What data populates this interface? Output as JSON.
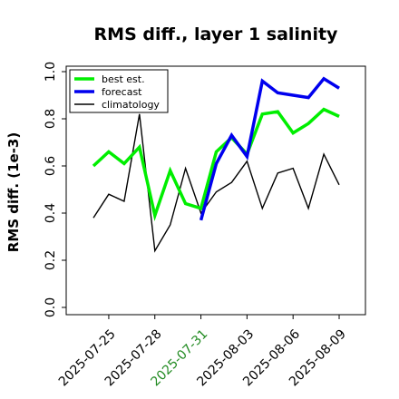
{
  "chart_data": {
    "type": "line",
    "title": "RMS diff., layer 1 salinity",
    "xlabel": "",
    "ylabel": "RMS diff. (1e-3)",
    "ylim": [
      0.0,
      1.05
    ],
    "yticks": [
      0.0,
      0.2,
      0.4,
      0.6,
      0.8,
      1.0
    ],
    "ytick_labels": [
      "0.0",
      "0.2",
      "0.4",
      "0.6",
      "0.8",
      "1.0"
    ],
    "xlim": [
      "2025-07-23",
      "2025-08-09"
    ],
    "xticks": [
      "2025-07-25",
      "2025-07-28",
      "2025-07-31",
      "2025-08-03",
      "2025-08-06",
      "2025-08-09"
    ],
    "xtick_colors": [
      "#000000",
      "#000000",
      "#228B22",
      "#000000",
      "#000000",
      "#000000"
    ],
    "grid": false,
    "legend_position": "upper-left",
    "series": [
      {
        "name": "best est.",
        "color": "#00ee00",
        "x": [
          "2025-07-24",
          "2025-07-25",
          "2025-07-26",
          "2025-07-27",
          "2025-07-28",
          "2025-07-29",
          "2025-07-30",
          "2025-07-31",
          "2025-08-01",
          "2025-08-02",
          "2025-08-03",
          "2025-08-04",
          "2025-08-05",
          "2025-08-06",
          "2025-08-07",
          "2025-08-08",
          "2025-08-09"
        ],
        "values": [
          0.6,
          0.66,
          0.61,
          0.68,
          0.39,
          0.58,
          0.44,
          0.42,
          0.66,
          0.72,
          0.65,
          0.82,
          0.83,
          0.74,
          0.78,
          0.84,
          0.81
        ]
      },
      {
        "name": "forecast",
        "color": "#0000ee",
        "x": [
          "2025-07-31",
          "2025-08-01",
          "2025-08-02",
          "2025-08-03",
          "2025-08-04",
          "2025-08-05",
          "2025-08-06",
          "2025-08-07",
          "2025-08-08",
          "2025-08-09"
        ],
        "values": [
          0.37,
          0.61,
          0.73,
          0.64,
          0.96,
          0.91,
          0.9,
          0.89,
          0.97,
          0.93
        ]
      },
      {
        "name": "climatology",
        "color": "#000000",
        "x": [
          "2025-07-24",
          "2025-07-25",
          "2025-07-26",
          "2025-07-27",
          "2025-07-28",
          "2025-07-29",
          "2025-07-30",
          "2025-07-31",
          "2025-08-01",
          "2025-08-02",
          "2025-08-03",
          "2025-08-04",
          "2025-08-05",
          "2025-08-06",
          "2025-08-07",
          "2025-08-08",
          "2025-08-09"
        ],
        "values": [
          0.38,
          0.48,
          0.45,
          0.82,
          0.24,
          0.35,
          0.59,
          0.4,
          0.49,
          0.53,
          0.62,
          0.42,
          0.57,
          0.59,
          0.42,
          0.65,
          0.52
        ]
      }
    ]
  }
}
